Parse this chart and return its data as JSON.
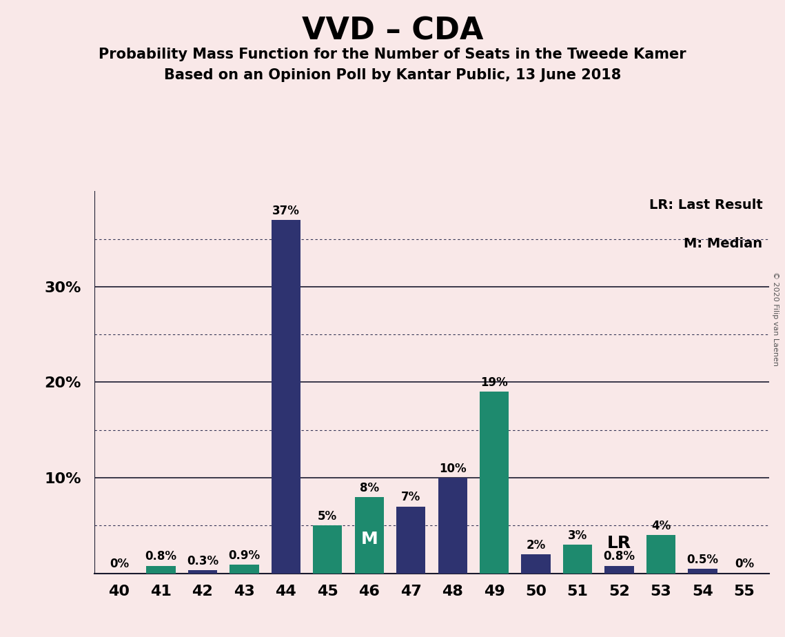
{
  "title": "VVD – CDA",
  "subtitle1": "Probability Mass Function for the Number of Seats in the Tweede Kamer",
  "subtitle2": "Based on an Opinion Poll by Kantar Public, 13 June 2018",
  "copyright": "© 2020 Filip van Laenen",
  "categories": [
    40,
    41,
    42,
    43,
    44,
    45,
    46,
    47,
    48,
    49,
    50,
    51,
    52,
    53,
    54,
    55
  ],
  "values": [
    0.0,
    0.8,
    0.3,
    0.9,
    37.0,
    5.0,
    8.0,
    7.0,
    10.0,
    19.0,
    2.0,
    3.0,
    0.8,
    4.0,
    0.5,
    0.0
  ],
  "bar_colors": [
    "#2e3370",
    "#1e8a6e",
    "#2e3370",
    "#1e8a6e",
    "#2e3370",
    "#1e8a6e",
    "#1e8a6e",
    "#2e3370",
    "#2e3370",
    "#1e8a6e",
    "#2e3370",
    "#1e8a6e",
    "#2e3370",
    "#1e8a6e",
    "#2e3370",
    "#2e3370"
  ],
  "labels": [
    "0%",
    "0.8%",
    "0.3%",
    "0.9%",
    "37%",
    "5%",
    "8%",
    "7%",
    "10%",
    "19%",
    "2%",
    "3%",
    "0.8%",
    "4%",
    "0.5%",
    "0%"
  ],
  "median_bar": 46,
  "lr_bar": 52,
  "ylim": [
    0,
    40
  ],
  "solid_yticks": [
    10,
    20,
    30
  ],
  "dotted_yticks": [
    5,
    15,
    25,
    35
  ],
  "background_color": "#f9e8e8",
  "legend_lr": "LR: Last Result",
  "legend_m": "M: Median",
  "bar_width": 0.7,
  "label_fontsize": 12,
  "ytick_fontsize": 16,
  "xtick_fontsize": 16,
  "title_fontsize": 32,
  "subtitle_fontsize": 15
}
